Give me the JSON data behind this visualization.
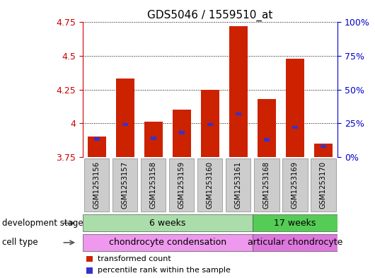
{
  "title": "GDS5046 / 1559510_at",
  "samples": [
    "GSM1253156",
    "GSM1253157",
    "GSM1253158",
    "GSM1253159",
    "GSM1253160",
    "GSM1253161",
    "GSM1253168",
    "GSM1253169",
    "GSM1253170"
  ],
  "bar_tops": [
    3.9,
    4.33,
    4.01,
    4.1,
    4.25,
    4.72,
    4.18,
    4.48,
    3.85
  ],
  "blue_pos": [
    3.885,
    3.992,
    3.888,
    3.93,
    3.992,
    4.07,
    3.88,
    3.97,
    3.83
  ],
  "bar_base": 3.75,
  "ylim_left": [
    3.75,
    4.75
  ],
  "ylim_right": [
    0,
    100
  ],
  "yticks_left": [
    3.75,
    4.0,
    4.25,
    4.5,
    4.75
  ],
  "ytick_labels_left": [
    "3.75",
    "4",
    "4.25",
    "4.5",
    "4.75"
  ],
  "yticks_right": [
    0,
    25,
    50,
    75,
    100
  ],
  "ytick_labels_right": [
    "0%",
    "25%",
    "50%",
    "75%",
    "100%"
  ],
  "bar_color": "#cc2200",
  "blue_color": "#3333cc",
  "bar_width": 0.65,
  "blue_size": 0.012,
  "dev_stage_groups": [
    {
      "label": "6 weeks",
      "start": 0,
      "end": 5,
      "color": "#aaddaa"
    },
    {
      "label": "17 weeks",
      "start": 6,
      "end": 8,
      "color": "#55cc55"
    }
  ],
  "cell_type_groups": [
    {
      "label": "chondrocyte condensation",
      "start": 0,
      "end": 5,
      "color": "#ee99ee"
    },
    {
      "label": "articular chondrocyte",
      "start": 6,
      "end": 8,
      "color": "#dd77dd"
    }
  ],
  "left_label_dev": "development stage",
  "left_label_cell": "cell type",
  "legend_items": [
    {
      "label": "transformed count",
      "color": "#cc2200"
    },
    {
      "label": "percentile rank within the sample",
      "color": "#3333cc"
    }
  ],
  "background_color": "#ffffff",
  "plot_bg": "#ffffff",
  "tick_color_left": "#cc0000",
  "tick_color_right": "#0000cc",
  "title_fontsize": 11,
  "tick_fontsize": 9
}
